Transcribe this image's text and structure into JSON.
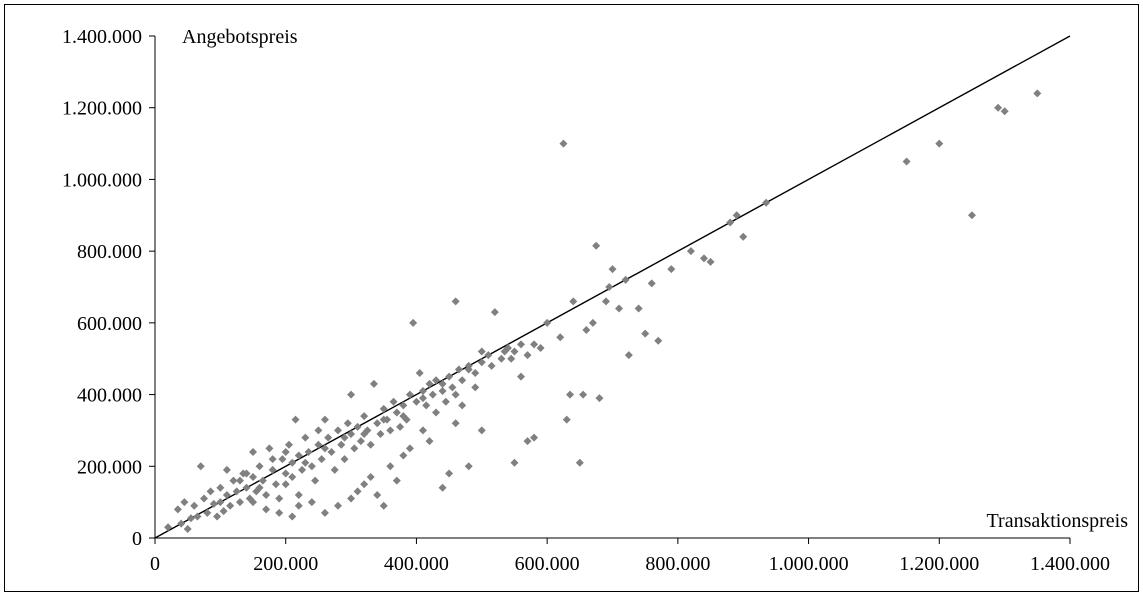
{
  "chart_data": {
    "type": "scatter",
    "title": "",
    "xlabel": "Transaktionspreis",
    "ylabel": "Angebotspreis",
    "xlim": [
      0,
      1400000
    ],
    "ylim": [
      0,
      1400000
    ],
    "x_ticks": [
      0,
      200000,
      400000,
      600000,
      800000,
      1000000,
      1200000,
      1400000
    ],
    "x_tick_labels": [
      "0",
      "200.000",
      "400.000",
      "600.000",
      "800.000",
      "1.000.000",
      "1.200.000",
      "1.400.000"
    ],
    "y_ticks": [
      0,
      200000,
      400000,
      600000,
      800000,
      1000000,
      1200000,
      1400000
    ],
    "y_tick_labels": [
      "0",
      "200.000",
      "400.000",
      "600.000",
      "800.000",
      "1.000.000",
      "1.200.000",
      "1.400.000"
    ],
    "grid": false,
    "reference_line": {
      "from": [
        0,
        0
      ],
      "to": [
        1400000,
        1400000
      ]
    },
    "series": [
      {
        "marker": "diamond",
        "color": "#808080",
        "points": [
          [
            20000,
            30000
          ],
          [
            35000,
            80000
          ],
          [
            40000,
            40000
          ],
          [
            45000,
            100000
          ],
          [
            50000,
            25000
          ],
          [
            55000,
            55000
          ],
          [
            60000,
            90000
          ],
          [
            65000,
            60000
          ],
          [
            70000,
            200000
          ],
          [
            75000,
            110000
          ],
          [
            80000,
            70000
          ],
          [
            85000,
            130000
          ],
          [
            90000,
            95000
          ],
          [
            95000,
            60000
          ],
          [
            100000,
            140000
          ],
          [
            100000,
            100000
          ],
          [
            105000,
            75000
          ],
          [
            110000,
            190000
          ],
          [
            110000,
            120000
          ],
          [
            115000,
            90000
          ],
          [
            120000,
            160000
          ],
          [
            125000,
            130000
          ],
          [
            130000,
            100000
          ],
          [
            135000,
            180000
          ],
          [
            140000,
            140000
          ],
          [
            145000,
            110000
          ],
          [
            150000,
            240000
          ],
          [
            150000,
            170000
          ],
          [
            155000,
            130000
          ],
          [
            160000,
            200000
          ],
          [
            165000,
            160000
          ],
          [
            170000,
            120000
          ],
          [
            175000,
            250000
          ],
          [
            180000,
            190000
          ],
          [
            185000,
            150000
          ],
          [
            190000,
            110000
          ],
          [
            195000,
            220000
          ],
          [
            200000,
            180000
          ],
          [
            200000,
            150000
          ],
          [
            205000,
            260000
          ],
          [
            210000,
            210000
          ],
          [
            210000,
            170000
          ],
          [
            215000,
            330000
          ],
          [
            220000,
            230000
          ],
          [
            220000,
            120000
          ],
          [
            225000,
            190000
          ],
          [
            230000,
            280000
          ],
          [
            235000,
            240000
          ],
          [
            240000,
            200000
          ],
          [
            245000,
            160000
          ],
          [
            250000,
            300000
          ],
          [
            250000,
            260000
          ],
          [
            255000,
            220000
          ],
          [
            260000,
            330000
          ],
          [
            265000,
            280000
          ],
          [
            270000,
            240000
          ],
          [
            275000,
            190000
          ],
          [
            280000,
            300000
          ],
          [
            285000,
            260000
          ],
          [
            290000,
            220000
          ],
          [
            295000,
            320000
          ],
          [
            300000,
            400000
          ],
          [
            300000,
            290000
          ],
          [
            305000,
            250000
          ],
          [
            310000,
            310000
          ],
          [
            315000,
            270000
          ],
          [
            320000,
            340000
          ],
          [
            325000,
            300000
          ],
          [
            330000,
            260000
          ],
          [
            335000,
            430000
          ],
          [
            340000,
            320000
          ],
          [
            345000,
            290000
          ],
          [
            350000,
            360000
          ],
          [
            355000,
            330000
          ],
          [
            360000,
            300000
          ],
          [
            365000,
            380000
          ],
          [
            370000,
            350000
          ],
          [
            375000,
            310000
          ],
          [
            380000,
            370000
          ],
          [
            385000,
            330000
          ],
          [
            390000,
            400000
          ],
          [
            395000,
            600000
          ],
          [
            400000,
            380000
          ],
          [
            405000,
            460000
          ],
          [
            410000,
            410000
          ],
          [
            415000,
            370000
          ],
          [
            420000,
            430000
          ],
          [
            425000,
            400000
          ],
          [
            430000,
            440000
          ],
          [
            440000,
            410000
          ],
          [
            445000,
            380000
          ],
          [
            450000,
            450000
          ],
          [
            455000,
            420000
          ],
          [
            460000,
            660000
          ],
          [
            465000,
            470000
          ],
          [
            470000,
            440000
          ],
          [
            480000,
            480000
          ],
          [
            490000,
            460000
          ],
          [
            500000,
            520000
          ],
          [
            500000,
            300000
          ],
          [
            510000,
            510000
          ],
          [
            520000,
            630000
          ],
          [
            530000,
            500000
          ],
          [
            540000,
            530000
          ],
          [
            550000,
            520000
          ],
          [
            560000,
            450000
          ],
          [
            570000,
            510000
          ],
          [
            580000,
            540000
          ],
          [
            590000,
            530000
          ],
          [
            600000,
            600000
          ],
          [
            620000,
            560000
          ],
          [
            625000,
            1100000
          ],
          [
            630000,
            330000
          ],
          [
            635000,
            400000
          ],
          [
            640000,
            660000
          ],
          [
            650000,
            210000
          ],
          [
            655000,
            400000
          ],
          [
            660000,
            580000
          ],
          [
            670000,
            600000
          ],
          [
            675000,
            815000
          ],
          [
            680000,
            390000
          ],
          [
            690000,
            660000
          ],
          [
            695000,
            700000
          ],
          [
            700000,
            750000
          ],
          [
            710000,
            640000
          ],
          [
            720000,
            720000
          ],
          [
            725000,
            510000
          ],
          [
            740000,
            640000
          ],
          [
            750000,
            570000
          ],
          [
            760000,
            710000
          ],
          [
            770000,
            550000
          ],
          [
            790000,
            750000
          ],
          [
            820000,
            800000
          ],
          [
            840000,
            780000
          ],
          [
            850000,
            770000
          ],
          [
            880000,
            880000
          ],
          [
            890000,
            900000
          ],
          [
            900000,
            840000
          ],
          [
            935000,
            935000
          ],
          [
            1150000,
            1050000
          ],
          [
            1200000,
            1100000
          ],
          [
            1250000,
            900000
          ],
          [
            1290000,
            1200000
          ],
          [
            1300000,
            1190000
          ],
          [
            1350000,
            1240000
          ],
          [
            150000,
            100000
          ],
          [
            170000,
            80000
          ],
          [
            190000,
            70000
          ],
          [
            210000,
            60000
          ],
          [
            220000,
            90000
          ],
          [
            240000,
            100000
          ],
          [
            260000,
            70000
          ],
          [
            280000,
            90000
          ],
          [
            300000,
            110000
          ],
          [
            310000,
            130000
          ],
          [
            320000,
            150000
          ],
          [
            330000,
            170000
          ],
          [
            340000,
            120000
          ],
          [
            350000,
            90000
          ],
          [
            360000,
            200000
          ],
          [
            370000,
            160000
          ],
          [
            380000,
            230000
          ],
          [
            390000,
            250000
          ],
          [
            410000,
            300000
          ],
          [
            420000,
            270000
          ],
          [
            430000,
            350000
          ],
          [
            440000,
            140000
          ],
          [
            450000,
            180000
          ],
          [
            460000,
            320000
          ],
          [
            470000,
            370000
          ],
          [
            480000,
            200000
          ],
          [
            490000,
            420000
          ],
          [
            550000,
            210000
          ],
          [
            570000,
            270000
          ],
          [
            580000,
            280000
          ],
          [
            130000,
            160000
          ],
          [
            140000,
            180000
          ],
          [
            160000,
            140000
          ],
          [
            180000,
            220000
          ],
          [
            200000,
            240000
          ],
          [
            230000,
            210000
          ],
          [
            260000,
            250000
          ],
          [
            290000,
            280000
          ],
          [
            320000,
            290000
          ],
          [
            350000,
            330000
          ],
          [
            380000,
            340000
          ],
          [
            410000,
            390000
          ],
          [
            440000,
            430000
          ],
          [
            460000,
            400000
          ],
          [
            480000,
            470000
          ],
          [
            500000,
            490000
          ],
          [
            515000,
            480000
          ],
          [
            535000,
            520000
          ],
          [
            545000,
            500000
          ],
          [
            560000,
            540000
          ]
        ]
      }
    ]
  }
}
